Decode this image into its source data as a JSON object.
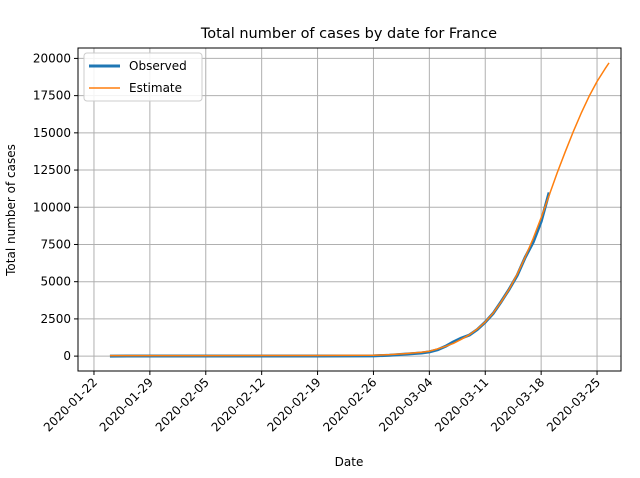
{
  "chart_data": {
    "type": "line",
    "title": "Total number of cases by date for France",
    "xlabel": "Date",
    "ylabel": "Total number of cases",
    "x_tick_labels": [
      "2020-01-22",
      "2020-01-29",
      "2020-02-05",
      "2020-02-12",
      "2020-02-19",
      "2020-02-26",
      "2020-03-04",
      "2020-03-11",
      "2020-03-18",
      "2020-03-25"
    ],
    "x_tick_dates": [
      "2020-01-22",
      "2020-01-29",
      "2020-02-05",
      "2020-02-12",
      "2020-02-19",
      "2020-02-26",
      "2020-03-04",
      "2020-03-11",
      "2020-03-18",
      "2020-03-25"
    ],
    "y_ticks": [
      0,
      2500,
      5000,
      7500,
      10000,
      12500,
      15000,
      17500,
      20000
    ],
    "y_tick_labels": [
      "0",
      "2500",
      "5000",
      "7500",
      "10000",
      "12500",
      "15000",
      "17500",
      "20000"
    ],
    "xlim": [
      "2020-01-20",
      "2020-03-28"
    ],
    "ylim": [
      -1000,
      20700
    ],
    "grid": true,
    "legend_position": "top-left",
    "series": [
      {
        "name": "Observed",
        "color": "#1f77b4",
        "points": [
          [
            "2020-01-24",
            3
          ],
          [
            "2020-01-29",
            5
          ],
          [
            "2020-02-05",
            6
          ],
          [
            "2020-02-12",
            11
          ],
          [
            "2020-02-19",
            12
          ],
          [
            "2020-02-26",
            18
          ],
          [
            "2020-02-28",
            57
          ],
          [
            "2020-03-01",
            130
          ],
          [
            "2020-03-03",
            212
          ],
          [
            "2020-03-04",
            285
          ],
          [
            "2020-03-05",
            423
          ],
          [
            "2020-03-06",
            653
          ],
          [
            "2020-03-07",
            949
          ],
          [
            "2020-03-08",
            1209
          ],
          [
            "2020-03-09",
            1412
          ],
          [
            "2020-03-10",
            1784
          ],
          [
            "2020-03-11",
            2281
          ],
          [
            "2020-03-12",
            2876
          ],
          [
            "2020-03-13",
            3661
          ],
          [
            "2020-03-14",
            4499
          ],
          [
            "2020-03-15",
            5423
          ],
          [
            "2020-03-16",
            6633
          ],
          [
            "2020-03-17",
            7652
          ],
          [
            "2020-03-18",
            9043
          ],
          [
            "2020-03-19",
            10995
          ]
        ]
      },
      {
        "name": "Estimate",
        "color": "#ff7f0e",
        "points": [
          [
            "2020-01-24",
            30
          ],
          [
            "2020-01-29",
            30
          ],
          [
            "2020-02-05",
            35
          ],
          [
            "2020-02-12",
            40
          ],
          [
            "2020-02-19",
            45
          ],
          [
            "2020-02-26",
            55
          ],
          [
            "2020-02-28",
            100
          ],
          [
            "2020-03-01",
            170
          ],
          [
            "2020-03-03",
            260
          ],
          [
            "2020-03-04",
            330
          ],
          [
            "2020-03-05",
            480
          ],
          [
            "2020-03-06",
            650
          ],
          [
            "2020-03-07",
            850
          ],
          [
            "2020-03-08",
            1130
          ],
          [
            "2020-03-09",
            1430
          ],
          [
            "2020-03-10",
            1820
          ],
          [
            "2020-03-11",
            2300
          ],
          [
            "2020-03-12",
            2900
          ],
          [
            "2020-03-13",
            3650
          ],
          [
            "2020-03-14",
            4500
          ],
          [
            "2020-03-15",
            5500
          ],
          [
            "2020-03-16",
            6650
          ],
          [
            "2020-03-17",
            7900
          ],
          [
            "2020-03-18",
            9300
          ],
          [
            "2020-03-19",
            10800
          ],
          [
            "2020-03-20",
            12300
          ],
          [
            "2020-03-21",
            13700
          ],
          [
            "2020-03-22",
            15050
          ],
          [
            "2020-03-23",
            16300
          ],
          [
            "2020-03-24",
            17450
          ],
          [
            "2020-03-25",
            18450
          ],
          [
            "2020-03-26",
            19300
          ],
          [
            "2020-03-26T12:00",
            19700
          ]
        ]
      }
    ]
  }
}
